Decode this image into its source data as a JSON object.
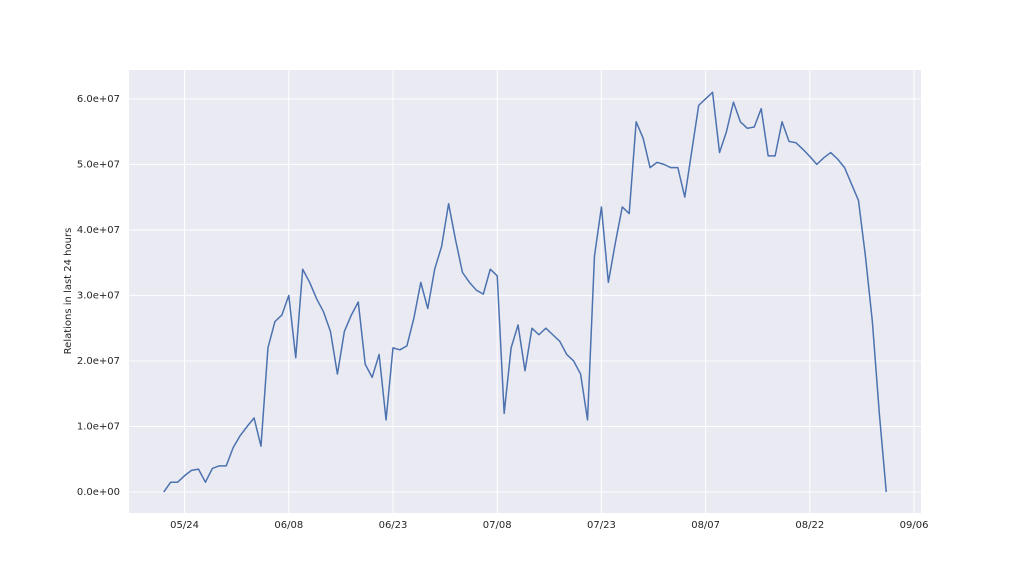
{
  "chart_data": {
    "type": "line",
    "ylabel": "Relations in last 24 hours",
    "x": [
      "05/21",
      "05/22",
      "05/23",
      "05/24",
      "05/25",
      "05/26",
      "05/27",
      "05/28",
      "05/29",
      "05/30",
      "05/31",
      "06/01",
      "06/02",
      "06/03",
      "06/04",
      "06/05",
      "06/06",
      "06/07",
      "06/08",
      "06/09",
      "06/10",
      "06/11",
      "06/12",
      "06/13",
      "06/14",
      "06/15",
      "06/16",
      "06/17",
      "06/18",
      "06/19",
      "06/20",
      "06/21",
      "06/22",
      "06/23",
      "06/24",
      "06/25",
      "06/26",
      "06/27",
      "06/28",
      "06/29",
      "06/30",
      "07/01",
      "07/02",
      "07/03",
      "07/04",
      "07/05",
      "07/06",
      "07/07",
      "07/08",
      "07/09",
      "07/10",
      "07/11",
      "07/12",
      "07/13",
      "07/14",
      "07/15",
      "07/16",
      "07/17",
      "07/18",
      "07/19",
      "07/20",
      "07/21",
      "07/22",
      "07/23",
      "07/24",
      "07/25",
      "07/26",
      "07/27",
      "07/28",
      "07/29",
      "07/30",
      "07/31",
      "08/01",
      "08/02",
      "08/03",
      "08/04",
      "08/05",
      "08/06",
      "08/07",
      "08/08",
      "08/09",
      "08/10",
      "08/11",
      "08/12",
      "08/13",
      "08/14",
      "08/15",
      "08/16",
      "08/17",
      "08/18",
      "08/19",
      "08/20",
      "08/21",
      "08/22",
      "08/23",
      "08/24",
      "08/25",
      "08/26",
      "08/27",
      "08/28",
      "08/29",
      "08/30",
      "08/31",
      "09/01",
      "09/02"
    ],
    "series": [
      {
        "color": "#4c72b0",
        "values": [
          0,
          1500000.0,
          1500000.0,
          2500000.0,
          3300000.0,
          3500000.0,
          1500000.0,
          3600000.0,
          4000000.0,
          4000000.0,
          6800000.0,
          8600000.0,
          10000000.0,
          11300000.0,
          7000000.0,
          22000000.0,
          26000000.0,
          27000000.0,
          30000000.0,
          20500000.0,
          34000000.0,
          32000000.0,
          29500000.0,
          27500000.0,
          24500000.0,
          18000000.0,
          24500000.0,
          27000000.0,
          29000000.0,
          19500000.0,
          17500000.0,
          21000000.0,
          11000000.0,
          22000000.0,
          21700000.0,
          22300000.0,
          26500000.0,
          32000000.0,
          28000000.0,
          34000000.0,
          37500000.0,
          44000000.0,
          38500000.0,
          33500000.0,
          32000000.0,
          30800000.0,
          30200000.0,
          34000000.0,
          33000000.0,
          12000000.0,
          22000000.0,
          25500000.0,
          18500000.0,
          25000000.0,
          24000000.0,
          25000000.0,
          24000000.0,
          23000000.0,
          21000000.0,
          20000000.0,
          18000000.0,
          11000000.0,
          36000000.0,
          43500000.0,
          32000000.0,
          38000000.0,
          43500000.0,
          42500000.0,
          56500000.0,
          54000000.0,
          49500000.0,
          50300000.0,
          50000000.0,
          49500000.0,
          49500000.0,
          45000000.0,
          52000000.0,
          59000000.0,
          60000000.0,
          61000000.0,
          51800000.0,
          55000000.0,
          59500000.0,
          56500000.0,
          55500000.0,
          55700000.0,
          58500000.0,
          51300000.0,
          51300000.0,
          56500000.0,
          53500000.0,
          53300000.0,
          52300000.0,
          51200000.0,
          50000000.0,
          51000000.0,
          51800000.0,
          50800000.0,
          49500000.0,
          47000000.0,
          44500000.0,
          36000000.0,
          26000000.0,
          12000000.0,
          0
        ]
      }
    ],
    "xlim": [
      "05/16",
      "09/07"
    ],
    "xticks": [
      "05/24",
      "06/08",
      "06/23",
      "07/08",
      "07/23",
      "08/07",
      "08/22",
      "09/06"
    ],
    "ylim": [
      -3200000,
      64400000
    ],
    "yticks": [
      {
        "value": 0,
        "label": "0.0e+00"
      },
      {
        "value": 10000000,
        "label": "1.0e+07"
      },
      {
        "value": 20000000,
        "label": "2.0e+07"
      },
      {
        "value": 30000000,
        "label": "3.0e+07"
      },
      {
        "value": 40000000,
        "label": "4.0e+07"
      },
      {
        "value": 50000000,
        "label": "5.0e+07"
      },
      {
        "value": 60000000,
        "label": "6.0e+07"
      }
    ],
    "grid": true
  }
}
